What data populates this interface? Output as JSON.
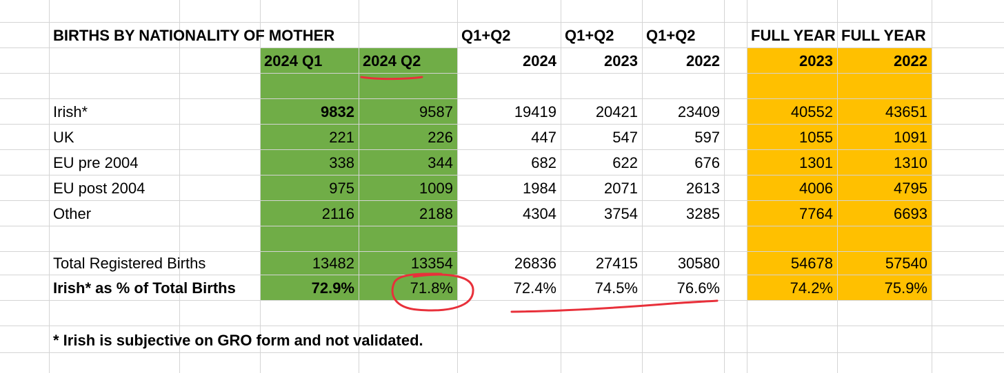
{
  "title": "BIRTHS BY NATIONALITY OF MOTHER",
  "group_headers": [
    "Q1+Q2",
    "Q1+Q2",
    "Q1+Q2",
    "FULL YEAR",
    "FULL YEAR"
  ],
  "col_headers": [
    "2024 Q1",
    "2024 Q2",
    "2024",
    "2023",
    "2022",
    "2023",
    "2022"
  ],
  "rows": [
    {
      "label": "Irish*",
      "values": [
        "9832",
        "9587",
        "19419",
        "20421",
        "23409",
        "40552",
        "43651"
      ]
    },
    {
      "label": "UK",
      "values": [
        "221",
        "226",
        "447",
        "547",
        "597",
        "1055",
        "1091"
      ]
    },
    {
      "label": "EU pre 2004",
      "values": [
        "338",
        "344",
        "682",
        "622",
        "676",
        "1301",
        "1310"
      ]
    },
    {
      "label": "EU post 2004",
      "values": [
        "975",
        "1009",
        "1984",
        "2071",
        "2613",
        "4006",
        "4795"
      ]
    },
    {
      "label": "Other",
      "values": [
        "2116",
        "2188",
        "4304",
        "3754",
        "3285",
        "7764",
        "6693"
      ]
    }
  ],
  "total_row": {
    "label": "Total Registered Births",
    "values": [
      "13482",
      "13354",
      "26836",
      "27415",
      "30580",
      "54678",
      "57540"
    ]
  },
  "pct_row": {
    "label": "Irish*  as % of Total Births",
    "values": [
      "72.9%",
      "71.8%",
      "72.4%",
      "74.5%",
      "76.6%",
      "74.2%",
      "75.9%"
    ]
  },
  "footnote": "* Irish is subjective on GRO form and not validated.",
  "colors": {
    "green_fill": "#70ad47",
    "orange_fill": "#ffc000",
    "gridline": "#d4d4d4",
    "annotation": "#e8303a"
  }
}
